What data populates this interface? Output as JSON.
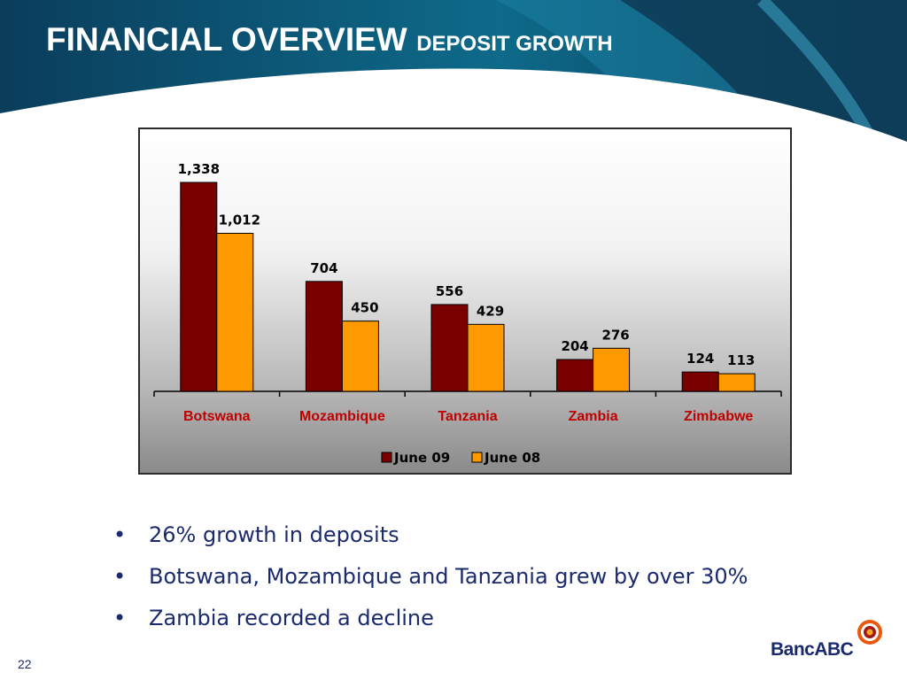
{
  "slide": {
    "title_main": "FINANCIAL OVERVIEW",
    "title_sub": "DEPOSIT GROWTH",
    "page_number": "22",
    "logo_text": "BancABC",
    "bullets": [
      "26% growth in deposits",
      "Botswana, Mozambique and Tanzania grew by over 30%",
      "Zambia recorded a decline"
    ]
  },
  "chart_data": {
    "type": "bar",
    "categories": [
      "Botswana",
      "Mozambique",
      "Tanzania",
      "Zambia",
      "Zimbabwe"
    ],
    "series": [
      {
        "name": "June 09",
        "values": [
          1338,
          704,
          556,
          204,
          124
        ],
        "labels": [
          "1,338",
          "704",
          "556",
          "204",
          "124"
        ],
        "color": "#7a0000"
      },
      {
        "name": "June 08",
        "values": [
          1012,
          450,
          429,
          276,
          113
        ],
        "labels": [
          "1,012",
          "450",
          "429",
          "276",
          "113"
        ],
        "color": "#ff9900"
      }
    ],
    "ylim": [
      0,
      1338
    ],
    "grid": false,
    "legend": "bottom",
    "category_label_color": "#c00000"
  }
}
